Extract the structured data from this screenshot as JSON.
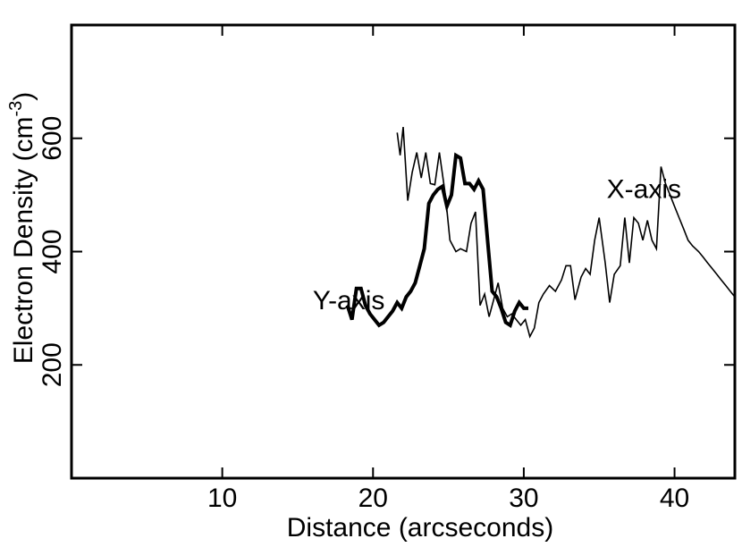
{
  "chart_data": {
    "type": "line",
    "xlabel": "Distance (arcseconds)",
    "ylabel_main": "Electron Density (cm",
    "ylabel_sup": "-3",
    "ylabel_end": ")",
    "xlim": [
      0,
      44
    ],
    "ylim": [
      0,
      800
    ],
    "xticks": [
      10,
      20,
      30,
      40
    ],
    "yticks": [
      200,
      400,
      600
    ],
    "grid": false,
    "series": [
      {
        "name": "X-axis",
        "style": "thin",
        "label_anchor": [
          35.5,
          495
        ],
        "x": [
          21.6,
          21.8,
          22.0,
          22.3,
          22.6,
          22.9,
          23.2,
          23.5,
          23.8,
          24.1,
          24.4,
          24.8,
          25.1,
          25.5,
          25.8,
          26.2,
          26.5,
          26.8,
          27.1,
          27.4,
          27.7,
          28.0,
          28.3,
          28.6,
          28.9,
          29.2,
          29.5,
          29.8,
          30.1,
          30.4,
          30.7,
          31.0,
          31.3,
          31.7,
          32.1,
          32.5,
          32.8,
          33.1,
          33.4,
          33.8,
          34.1,
          34.4,
          34.7,
          35.0,
          35.4,
          35.7,
          36.0,
          36.4,
          36.7,
          37.0,
          37.3,
          37.6,
          37.9,
          38.2,
          38.5,
          38.8,
          39.1,
          39.4,
          39.7,
          40.0,
          40.3,
          40.6,
          40.9,
          41.2,
          41.6,
          41.9,
          42.2,
          42.5,
          42.8,
          43.1,
          43.4,
          43.7,
          44.0
        ],
        "y": [
          610,
          570,
          620,
          490,
          540,
          575,
          530,
          575,
          520,
          518,
          575,
          500,
          420,
          400,
          405,
          400,
          450,
          470,
          305,
          325,
          285,
          315,
          345,
          300,
          285,
          290,
          280,
          270,
          280,
          250,
          265,
          310,
          325,
          340,
          330,
          350,
          375,
          375,
          315,
          355,
          370,
          360,
          420,
          460,
          380,
          310,
          360,
          375,
          460,
          380,
          460,
          450,
          420,
          455,
          420,
          405,
          550,
          520,
          500,
          480,
          460,
          440,
          420,
          410,
          400,
          390,
          380,
          370,
          360,
          350,
          340,
          330,
          320
        ]
      },
      {
        "name": "Y-axis",
        "style": "thick",
        "label_anchor": [
          16.0,
          298
        ],
        "x": [
          18.3,
          18.6,
          18.9,
          19.2,
          19.5,
          19.8,
          20.1,
          20.4,
          20.7,
          21.0,
          21.3,
          21.6,
          21.9,
          22.2,
          22.5,
          22.8,
          23.1,
          23.4,
          23.7,
          24.0,
          24.3,
          24.6,
          24.9,
          25.2,
          25.5,
          25.8,
          26.1,
          26.4,
          26.7,
          27.0,
          27.3,
          27.6,
          27.9,
          28.2,
          28.5,
          28.8,
          29.1,
          29.4,
          29.7,
          30.0,
          30.3
        ],
        "y": [
          305,
          280,
          335,
          335,
          305,
          290,
          280,
          270,
          275,
          285,
          295,
          310,
          300,
          320,
          330,
          345,
          375,
          405,
          485,
          500,
          510,
          515,
          480,
          500,
          570,
          565,
          520,
          520,
          510,
          525,
          510,
          420,
          330,
          320,
          300,
          275,
          270,
          295,
          310,
          300,
          300
        ]
      }
    ]
  }
}
